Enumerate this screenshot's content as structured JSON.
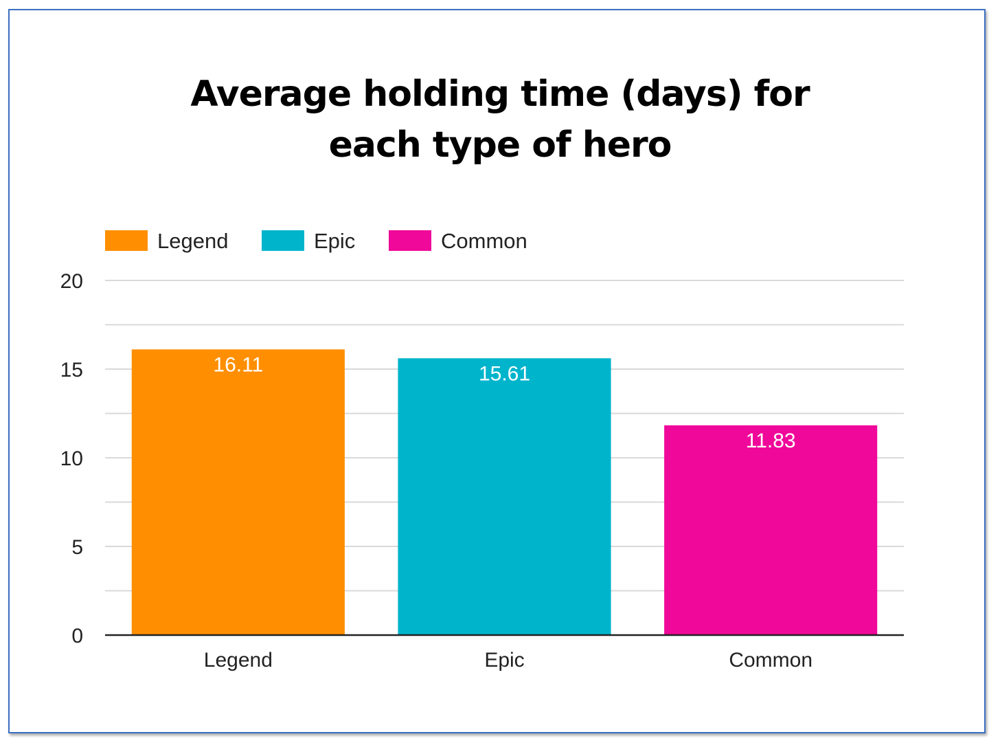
{
  "chart_data": {
    "type": "bar",
    "title_lines": [
      "Average holding time (days) for",
      "each type of hero"
    ],
    "categories": [
      "Legend",
      "Epic",
      "Common"
    ],
    "values": [
      16.11,
      15.61,
      11.83
    ],
    "data_labels": [
      "16.11",
      "15.61",
      "11.83"
    ],
    "colors": [
      "#ff8f00",
      "#00b4cc",
      "#ef0899"
    ],
    "legend": {
      "placement": "top-left",
      "entries": [
        "Legend",
        "Epic",
        "Common"
      ]
    },
    "ylim": [
      0,
      20
    ],
    "y_ticks": [
      0,
      5,
      10,
      15,
      20
    ],
    "y_tick_labels": [
      "0",
      "5",
      "10",
      "15",
      "20"
    ],
    "gridlines": true,
    "xlabel": "",
    "ylabel": ""
  }
}
